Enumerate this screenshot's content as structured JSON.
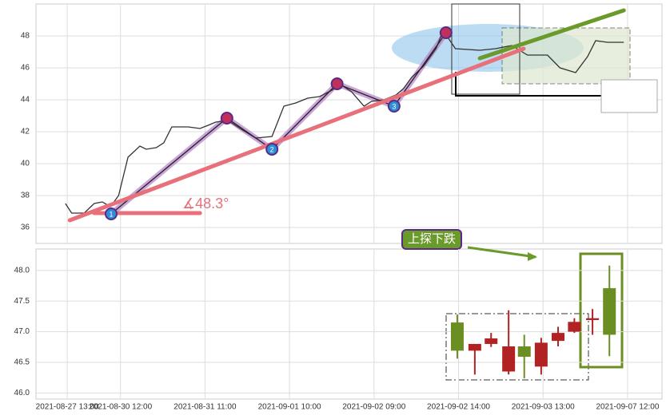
{
  "chart_data": [
    {
      "type": "line",
      "xlim": [
        0,
        100
      ],
      "ylim": [
        35,
        50
      ],
      "yticks": [
        36,
        38,
        40,
        42,
        44,
        46,
        48
      ],
      "grid": true,
      "color": "#333333",
      "x": [
        4.7,
        5.7,
        7.7,
        9.3,
        10.6,
        11.9,
        13.2,
        14.7,
        16.6,
        17.6,
        19.2,
        20.4,
        21.7,
        23,
        24.3,
        26.2,
        27.5,
        28.7,
        30.7,
        32.6,
        35.1,
        37.7,
        39.6,
        41.5,
        43.4,
        45.3,
        47.3,
        48.5,
        50.4,
        52.4,
        53.6,
        55.6,
        57.5,
        58.7,
        60,
        61.9,
        63.9,
        64.9,
        65.8,
        67,
        70.9,
        73.4,
        76,
        78.5,
        81.7,
        83.7,
        86.2,
        88.1,
        89.4,
        91.3,
        93.9
      ],
      "values": [
        37.5,
        36.9,
        36.9,
        37.5,
        37.6,
        37.3,
        38,
        40.4,
        41.1,
        40.9,
        41,
        41.3,
        42.3,
        42.3,
        42.3,
        42.2,
        42.4,
        42.6,
        42.7,
        42.2,
        41.6,
        41.7,
        43.6,
        43.8,
        44.1,
        44.2,
        44.6,
        45,
        44.5,
        43.6,
        43.9,
        44,
        44.3,
        44.7,
        45.4,
        46.1,
        47.2,
        48.2,
        47.9,
        47.2,
        47.1,
        47.2,
        47.4,
        46.8,
        46.8,
        46,
        45.7,
        46.7,
        47.7,
        47.6,
        47.6
      ],
      "wave": {
        "color": "#b57ec9",
        "x": [
          12,
          30.5,
          37.7,
          48.1,
          57.2,
          65.5
        ],
        "values": [
          36.85,
          42.85,
          40.9,
          45,
          43.6,
          48.2
        ],
        "labels": [
          "1",
          null,
          "2",
          null,
          "3",
          null
        ]
      },
      "trendlines": [
        {
          "color": "#e8707a",
          "x": [
            5.4,
            77.9
          ],
          "values": [
            36.45,
            47.2
          ]
        },
        {
          "color": "#6a9a2a",
          "x": [
            70.9,
            93.9
          ],
          "values": [
            46.6,
            49.6
          ]
        },
        {
          "color": "#e8707a",
          "x": [
            9.3,
            26.2
          ],
          "values": [
            36.9,
            36.9
          ]
        }
      ],
      "angle_label": "∡48.3°"
    },
    {
      "type": "candlestick",
      "xlim": [
        0,
        100
      ],
      "ylim": [
        45.9,
        48.35
      ],
      "grid": true,
      "yticks": [
        {
          "value": 46,
          "label": "46.0"
        },
        {
          "value": 46.5,
          "label": "46.5"
        },
        {
          "value": 47,
          "label": "47.0"
        },
        {
          "value": 47.5,
          "label": "47.5"
        },
        {
          "value": 48,
          "label": "48.0"
        }
      ],
      "xticks": [
        {
          "value": 5,
          "label": "2021-08-27 13:00"
        },
        {
          "value": 13.5,
          "label": "2021-08-30 12:00"
        },
        {
          "value": 27,
          "label": "2021-08-31 11:00"
        },
        {
          "value": 40.5,
          "label": "2021-09-01 10:00"
        },
        {
          "value": 54,
          "label": "2021-09-02 09:00"
        },
        {
          "value": 67.5,
          "label": "2021-09-02 14:00"
        },
        {
          "value": 81,
          "label": "2021-09-03 13:00"
        },
        {
          "value": 94.5,
          "label": "2021-09-07 12:00"
        }
      ],
      "up_color": "#b22222",
      "down_color": "#6b8e23",
      "x": [
        67.3,
        70.1,
        72.7,
        75.5,
        78,
        80.7,
        83.4,
        86,
        88.9,
        91.6
      ],
      "open": [
        47.15,
        46.69,
        46.8,
        46.35,
        46.76,
        46.43,
        46.85,
        47.0,
        47.19,
        47.71
      ],
      "close": [
        46.69,
        46.8,
        46.89,
        46.76,
        46.59,
        46.82,
        46.98,
        47.16,
        47.22,
        46.95
      ],
      "high": [
        47.28,
        46.8,
        46.98,
        47.35,
        46.95,
        46.9,
        47.08,
        47.22,
        47.37,
        48.08
      ],
      "low": [
        46.56,
        46.3,
        46.75,
        46.3,
        46.24,
        46.3,
        46.76,
        46.98,
        46.95,
        46.6
      ],
      "pattern_label": "上探下跌"
    }
  ]
}
